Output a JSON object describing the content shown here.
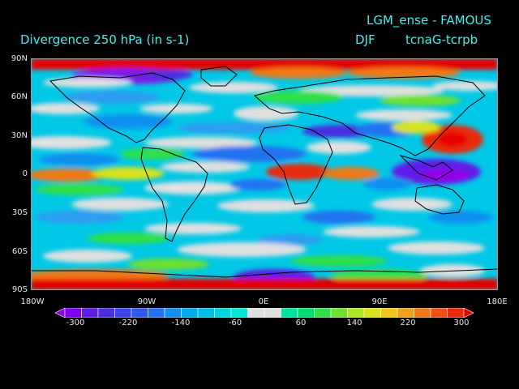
{
  "header": {
    "run_title": "LGM_ense - FAMOUS",
    "variable": "Divergence   250 hPa  (in s-1)",
    "season": "DJF",
    "experiment": "tcnaG-tcrpb"
  },
  "map": {
    "projection": "cylindrical equidistant",
    "lat_labels": [
      "90N",
      "60N",
      "30N",
      "0",
      "30S",
      "60S",
      "90S"
    ],
    "lon_labels": [
      "180W",
      "90W",
      "0E",
      "90E",
      "180E"
    ]
  },
  "colorbar": {
    "labels": [
      "-300",
      "-220",
      "-140",
      "-60",
      "60",
      "140",
      "220",
      "300"
    ],
    "colors": [
      "#9000e8",
      "#7f00f0",
      "#5e1de8",
      "#4a2fe0",
      "#3a44e6",
      "#2d5aec",
      "#2172f0",
      "#1190f0",
      "#06a8f0",
      "#00bfe8",
      "#00d4e0",
      "#00e6d2",
      "#e0e0e0",
      "#e0e0e0",
      "#00e0a0",
      "#00e070",
      "#2ee04a",
      "#6ee02e",
      "#a8e626",
      "#d8e21c",
      "#f0c81a",
      "#f0a01a",
      "#f07818",
      "#f05010",
      "#e82a0a",
      "#e00000"
    ]
  },
  "colors": {
    "background": "#000000",
    "title": "#3ff0ee",
    "labels": "#e8e8e8",
    "no_data_band": "#d8d8d8"
  }
}
